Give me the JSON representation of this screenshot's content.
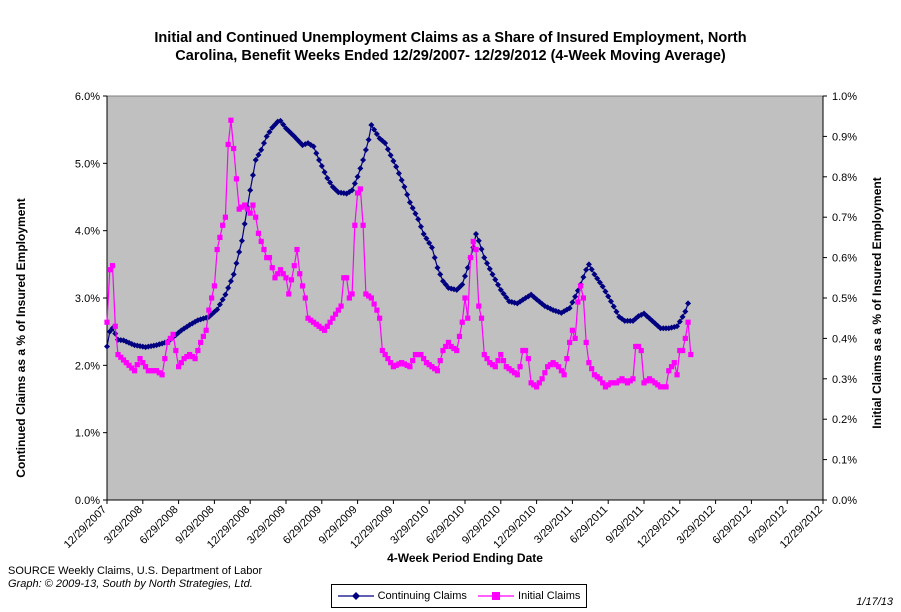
{
  "chart_data": {
    "type": "line",
    "title": "Initial and Continued Unemployment Claims as a Share of Insured Employment, North Carolina, Benefit Weeks Ended 12/29/2007- 12/29/2012 (4-Week Moving Average)",
    "title_line1": "Initial and Continued Unemployment Claims as a Share of Insured Employment, North",
    "title_line2": "Carolina, Benefit Weeks Ended 12/29/2007- 12/29/2012 (4-Week Moving Average)",
    "xlabel": "4-Week Period Ending Date",
    "ylabel_left": "Continued Claims as a % of Insured Employment",
    "ylabel_right": "Initial Claims as a % of Insured Employment",
    "x_start": "12/29/2007",
    "x_end": "12/29/2012",
    "x_tick_labels": [
      "12/29/2007",
      "3/29/2008",
      "6/29/2008",
      "9/29/2008",
      "12/29/2008",
      "3/29/2009",
      "6/29/2009",
      "9/29/2009",
      "12/29/2009",
      "3/29/2010",
      "6/29/2010",
      "9/29/2010",
      "12/29/2010",
      "3/29/2011",
      "6/29/2011",
      "9/29/2011",
      "12/29/2011",
      "3/29/2012",
      "6/29/2012",
      "9/29/2012",
      "12/29/2012"
    ],
    "ylim_left": [
      0,
      6
    ],
    "ylim_right": [
      0,
      1
    ],
    "y_left_ticks": [
      "0.0%",
      "1.0%",
      "2.0%",
      "3.0%",
      "4.0%",
      "5.0%",
      "6.0%"
    ],
    "y_right_ticks": [
      "0.0%",
      "0.1%",
      "0.2%",
      "0.3%",
      "0.4%",
      "0.5%",
      "0.6%",
      "0.7%",
      "0.8%",
      "0.9%",
      "1.0%"
    ],
    "plot_background": "#c0c0c0",
    "grid": false,
    "legend_position": "bottom",
    "series": [
      {
        "name": "Continuing Claims",
        "axis": "left",
        "color": "#000080",
        "marker": "diamond",
        "keypoints": [
          [
            0,
            2.28
          ],
          [
            1,
            2.5
          ],
          [
            2,
            2.55
          ],
          [
            3,
            2.47
          ],
          [
            4,
            2.38
          ],
          [
            6,
            2.37
          ],
          [
            10,
            2.3
          ],
          [
            14,
            2.27
          ],
          [
            18,
            2.3
          ],
          [
            22,
            2.35
          ],
          [
            25,
            2.45
          ],
          [
            27,
            2.52
          ],
          [
            30,
            2.6
          ],
          [
            33,
            2.67
          ],
          [
            37,
            2.72
          ],
          [
            40,
            2.83
          ],
          [
            43,
            3.05
          ],
          [
            46,
            3.35
          ],
          [
            49,
            3.85
          ],
          [
            52,
            4.6
          ],
          [
            54,
            5.05
          ],
          [
            56,
            5.2
          ],
          [
            58,
            5.4
          ],
          [
            60,
            5.53
          ],
          [
            62,
            5.62
          ],
          [
            63,
            5.63
          ],
          [
            65,
            5.52
          ],
          [
            68,
            5.4
          ],
          [
            71,
            5.27
          ],
          [
            73,
            5.3
          ],
          [
            75,
            5.25
          ],
          [
            77,
            5.05
          ],
          [
            80,
            4.78
          ],
          [
            82,
            4.65
          ],
          [
            84,
            4.57
          ],
          [
            87,
            4.55
          ],
          [
            89,
            4.6
          ],
          [
            91,
            4.8
          ],
          [
            93,
            5.05
          ],
          [
            95,
            5.35
          ],
          [
            96,
            5.57
          ],
          [
            97,
            5.5
          ],
          [
            99,
            5.37
          ],
          [
            101,
            5.3
          ],
          [
            103,
            5.12
          ],
          [
            105,
            4.95
          ],
          [
            108,
            4.65
          ],
          [
            110,
            4.42
          ],
          [
            113,
            4.17
          ],
          [
            115,
            3.95
          ],
          [
            118,
            3.75
          ],
          [
            120,
            3.45
          ],
          [
            122,
            3.25
          ],
          [
            124,
            3.15
          ],
          [
            127,
            3.12
          ],
          [
            129,
            3.2
          ],
          [
            131,
            3.45
          ],
          [
            133,
            3.75
          ],
          [
            134,
            3.95
          ],
          [
            135,
            3.85
          ],
          [
            137,
            3.6
          ],
          [
            140,
            3.35
          ],
          [
            143,
            3.12
          ],
          [
            146,
            2.95
          ],
          [
            149,
            2.92
          ],
          [
            152,
            3.0
          ],
          [
            154,
            3.05
          ],
          [
            156,
            2.98
          ],
          [
            159,
            2.88
          ],
          [
            162,
            2.82
          ],
          [
            165,
            2.78
          ],
          [
            168,
            2.85
          ],
          [
            170,
            3.02
          ],
          [
            172,
            3.2
          ],
          [
            174,
            3.42
          ],
          [
            175,
            3.5
          ],
          [
            177,
            3.35
          ],
          [
            180,
            3.17
          ],
          [
            183,
            2.95
          ],
          [
            186,
            2.72
          ],
          [
            188,
            2.66
          ],
          [
            191,
            2.66
          ],
          [
            193,
            2.73
          ],
          [
            195,
            2.77
          ],
          [
            198,
            2.66
          ],
          [
            201,
            2.55
          ],
          [
            204,
            2.55
          ],
          [
            207,
            2.58
          ],
          [
            209,
            2.72
          ],
          [
            210,
            2.8
          ],
          [
            211,
            2.92
          ]
        ]
      },
      {
        "name": "Initial Claims",
        "axis": "right",
        "color": "#ff00ff",
        "marker": "square",
        "keypoints": [
          [
            0,
            0.44
          ],
          [
            1,
            0.57
          ],
          [
            2,
            0.58
          ],
          [
            3,
            0.43
          ],
          [
            4,
            0.36
          ],
          [
            7,
            0.34
          ],
          [
            10,
            0.32
          ],
          [
            12,
            0.35
          ],
          [
            15,
            0.32
          ],
          [
            18,
            0.32
          ],
          [
            20,
            0.31
          ],
          [
            21,
            0.35
          ],
          [
            22,
            0.39
          ],
          [
            24,
            0.41
          ],
          [
            26,
            0.33
          ],
          [
            28,
            0.35
          ],
          [
            30,
            0.36
          ],
          [
            32,
            0.35
          ],
          [
            34,
            0.39
          ],
          [
            36,
            0.42
          ],
          [
            37,
            0.47
          ],
          [
            38,
            0.5
          ],
          [
            39,
            0.53
          ],
          [
            40,
            0.62
          ],
          [
            42,
            0.68
          ],
          [
            43,
            0.7
          ],
          [
            44,
            0.88
          ],
          [
            45,
            0.94
          ],
          [
            46,
            0.87
          ],
          [
            48,
            0.72
          ],
          [
            50,
            0.73
          ],
          [
            52,
            0.71
          ],
          [
            53,
            0.73
          ],
          [
            54,
            0.7
          ],
          [
            55,
            0.66
          ],
          [
            56,
            0.64
          ],
          [
            58,
            0.6
          ],
          [
            59,
            0.6
          ],
          [
            61,
            0.55
          ],
          [
            63,
            0.57
          ],
          [
            65,
            0.55
          ],
          [
            66,
            0.51
          ],
          [
            68,
            0.58
          ],
          [
            69,
            0.62
          ],
          [
            70,
            0.56
          ],
          [
            72,
            0.5
          ],
          [
            73,
            0.45
          ],
          [
            75,
            0.44
          ],
          [
            77,
            0.43
          ],
          [
            79,
            0.42
          ],
          [
            81,
            0.44
          ],
          [
            83,
            0.46
          ],
          [
            85,
            0.48
          ],
          [
            86,
            0.55
          ],
          [
            87,
            0.55
          ],
          [
            88,
            0.5
          ],
          [
            89,
            0.51
          ],
          [
            90,
            0.68
          ],
          [
            91,
            0.76
          ],
          [
            92,
            0.77
          ],
          [
            93,
            0.68
          ],
          [
            94,
            0.51
          ],
          [
            96,
            0.5
          ],
          [
            98,
            0.47
          ],
          [
            99,
            0.45
          ],
          [
            100,
            0.37
          ],
          [
            102,
            0.35
          ],
          [
            104,
            0.33
          ],
          [
            107,
            0.34
          ],
          [
            110,
            0.33
          ],
          [
            112,
            0.36
          ],
          [
            114,
            0.36
          ],
          [
            116,
            0.34
          ],
          [
            118,
            0.33
          ],
          [
            120,
            0.32
          ],
          [
            122,
            0.37
          ],
          [
            124,
            0.39
          ],
          [
            125,
            0.38
          ],
          [
            127,
            0.37
          ],
          [
            129,
            0.44
          ],
          [
            130,
            0.5
          ],
          [
            131,
            0.45
          ],
          [
            132,
            0.6
          ],
          [
            133,
            0.64
          ],
          [
            134,
            0.62
          ],
          [
            135,
            0.48
          ],
          [
            136,
            0.45
          ],
          [
            137,
            0.36
          ],
          [
            139,
            0.34
          ],
          [
            141,
            0.33
          ],
          [
            143,
            0.36
          ],
          [
            145,
            0.33
          ],
          [
            147,
            0.32
          ],
          [
            149,
            0.31
          ],
          [
            150,
            0.33
          ],
          [
            151,
            0.37
          ],
          [
            152,
            0.37
          ],
          [
            153,
            0.35
          ],
          [
            154,
            0.29
          ],
          [
            156,
            0.28
          ],
          [
            158,
            0.3
          ],
          [
            160,
            0.33
          ],
          [
            162,
            0.34
          ],
          [
            164,
            0.33
          ],
          [
            166,
            0.31
          ],
          [
            168,
            0.39
          ],
          [
            169,
            0.42
          ],
          [
            170,
            0.4
          ],
          [
            171,
            0.49
          ],
          [
            172,
            0.53
          ],
          [
            173,
            0.5
          ],
          [
            174,
            0.39
          ],
          [
            175,
            0.34
          ],
          [
            177,
            0.31
          ],
          [
            179,
            0.3
          ],
          [
            181,
            0.28
          ],
          [
            183,
            0.29
          ],
          [
            185,
            0.29
          ],
          [
            187,
            0.3
          ],
          [
            189,
            0.29
          ],
          [
            191,
            0.3
          ],
          [
            192,
            0.38
          ],
          [
            193,
            0.38
          ],
          [
            194,
            0.37
          ],
          [
            195,
            0.29
          ],
          [
            197,
            0.3
          ],
          [
            199,
            0.29
          ],
          [
            201,
            0.28
          ],
          [
            203,
            0.28
          ],
          [
            204,
            0.32
          ],
          [
            206,
            0.34
          ],
          [
            207,
            0.31
          ],
          [
            208,
            0.37
          ],
          [
            209,
            0.37
          ],
          [
            210,
            0.4
          ],
          [
            211,
            0.44
          ],
          [
            212,
            0.36
          ]
        ]
      }
    ]
  },
  "source_line": "SOURCE  Weekly Claims, U.S. Department of Labor",
  "credit_line": "Graph: © 2009-13, South by North Strategies, Ltd.",
  "date_stamp": "1/17/13",
  "legend": {
    "continuing": "Continuing Claims",
    "initial": "Initial Claims"
  }
}
